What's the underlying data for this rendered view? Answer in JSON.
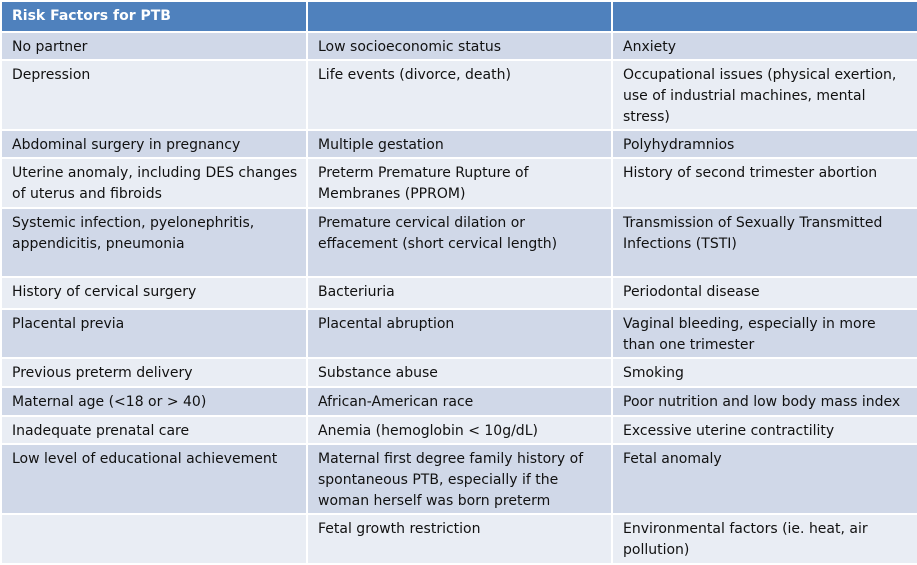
{
  "table": {
    "title": "Risk Factors for PTB",
    "rows": [
      [
        "No partner",
        "Low socioeconomic status",
        "Anxiety"
      ],
      [
        "Depression",
        "Life events (divorce, death)",
        "Occupational issues (physical exertion, use of industrial machines, mental stress)"
      ],
      [
        "Abdominal surgery in pregnancy",
        "Multiple gestation",
        "Polyhydramnios"
      ],
      [
        "Uterine anomaly, including DES changes of uterus and fibroids",
        "Preterm Premature Rupture of Membranes (PPROM)",
        "History of second trimester abortion"
      ],
      [
        "Systemic infection, pyelonephritis, appendicitis, pneumonia",
        "Premature cervical dilation or effacement (short cervical length)",
        "Transmission of Sexually Transmitted Infections (TSTI)"
      ],
      [
        "History of cervical surgery",
        "Bacteriuria",
        "Periodontal disease"
      ],
      [
        "Placental previa",
        "Placental abruption",
        "Vaginal bleeding, especially in more than one trimester"
      ],
      [
        "Previous preterm delivery",
        "Substance abuse",
        "Smoking"
      ],
      [
        "Maternal age (<18 or > 40)",
        "African-American race",
        "Poor nutrition and low body mass index"
      ],
      [
        "Inadequate prenatal care",
        "Anemia (hemoglobin < 10g/dL)",
        "Excessive uterine contractility"
      ],
      [
        "Low level of educational achievement",
        "Maternal first degree family history of spontaneous PTB, especially if the woman herself was born preterm",
        "Fetal anomaly"
      ],
      [
        null,
        "Fetal growth restriction",
        "Environmental factors (ie. heat, air pollution)"
      ]
    ]
  }
}
